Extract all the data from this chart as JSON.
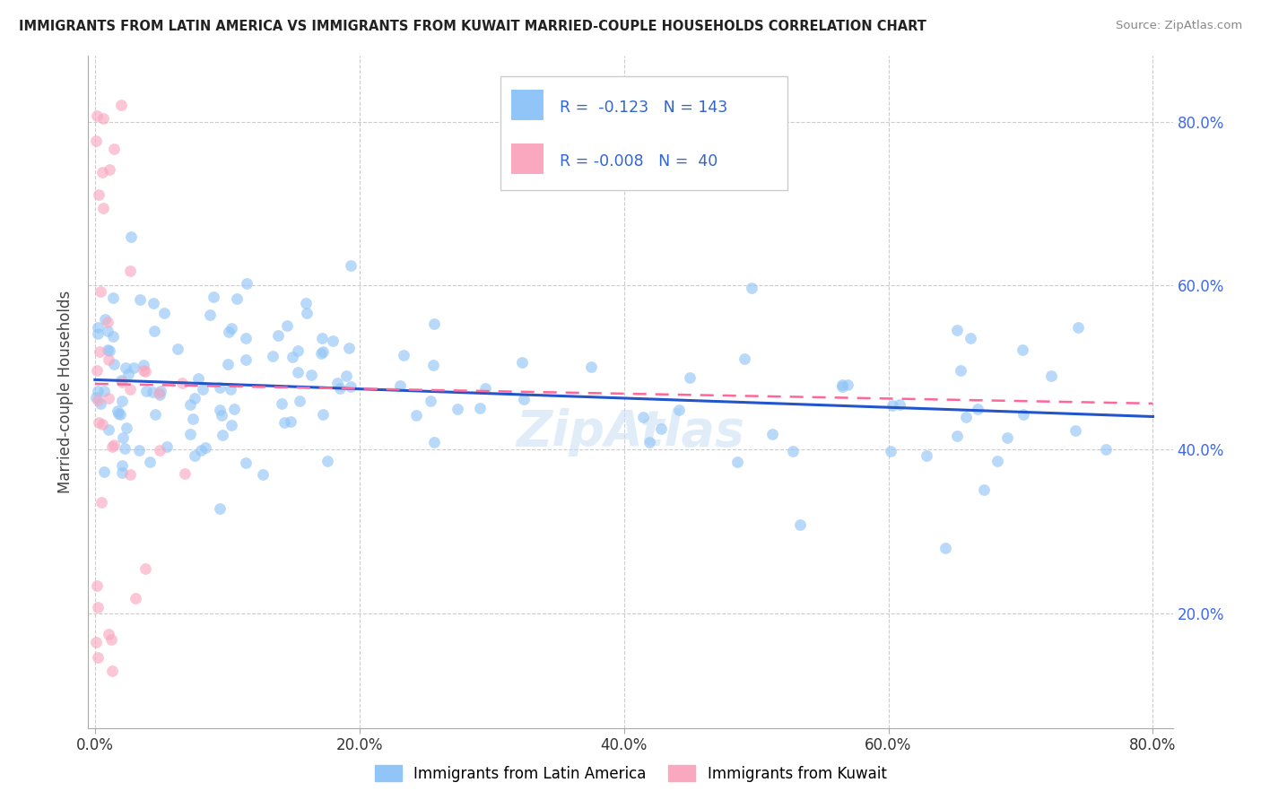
{
  "title": "IMMIGRANTS FROM LATIN AMERICA VS IMMIGRANTS FROM KUWAIT MARRIED-COUPLE HOUSEHOLDS CORRELATION CHART",
  "source": "Source: ZipAtlas.com",
  "ylabel": "Married-couple Households",
  "x_tick_labels": [
    "0.0%",
    "20.0%",
    "40.0%",
    "60.0%",
    "80.0%"
  ],
  "y_tick_labels": [
    "20.0%",
    "40.0%",
    "60.0%",
    "80.0%"
  ],
  "x_ticks": [
    0.0,
    0.2,
    0.4,
    0.6,
    0.8
  ],
  "y_ticks": [
    0.2,
    0.4,
    0.6,
    0.8
  ],
  "x_min": -0.005,
  "x_max": 0.815,
  "y_min": 0.06,
  "y_max": 0.88,
  "blue_color": "#92C5F7",
  "pink_color": "#F9A8C0",
  "trendline_blue": "#2255CC",
  "trendline_pink": "#FF6699",
  "trendline_blue_start_y": 0.485,
  "trendline_blue_end_y": 0.44,
  "trendline_pink_start_y": 0.48,
  "trendline_pink_end_y": 0.456,
  "legend_R1": "-0.123",
  "legend_N1": "143",
  "legend_R2": "-0.008",
  "legend_N2": "40",
  "bottom_legend1": "Immigrants from Latin America",
  "bottom_legend2": "Immigrants from Kuwait",
  "watermark": "ZipAtlas",
  "grid_color": "#cccccc",
  "scatter_size": 85,
  "scatter_alpha": 0.65
}
